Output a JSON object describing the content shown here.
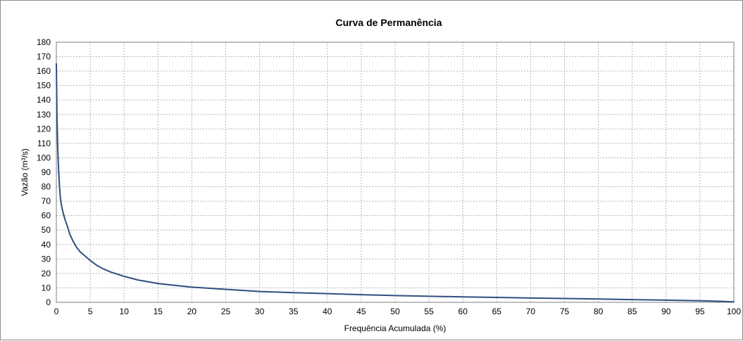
{
  "chart_data": {
    "type": "line",
    "title": "Curva de Permanência",
    "xlabel": "Frequência Acumulada  (%)",
    "ylabel": "Vazão (m³/s)",
    "xlim": [
      0,
      100
    ],
    "ylim": [
      0,
      180
    ],
    "xticks": [
      0,
      5,
      10,
      15,
      20,
      25,
      30,
      35,
      40,
      45,
      50,
      55,
      60,
      65,
      70,
      75,
      80,
      85,
      90,
      95,
      100
    ],
    "yticks": [
      0,
      10,
      20,
      30,
      40,
      50,
      60,
      70,
      80,
      90,
      100,
      110,
      120,
      130,
      140,
      150,
      160,
      170,
      180
    ],
    "grid": true,
    "legend": "none",
    "series": [
      {
        "color": "#2f4f7f",
        "x": [
          0,
          0.1,
          0.2,
          0.3,
          0.4,
          0.5,
          0.6,
          0.8,
          1.0,
          1.3,
          1.6,
          2.0,
          2.5,
          3.0,
          3.5,
          4.0,
          5.0,
          6.0,
          7.0,
          8.0,
          9.0,
          10,
          12,
          15,
          20,
          25,
          30,
          35,
          40,
          45,
          50,
          55,
          60,
          65,
          70,
          75,
          80,
          85,
          90,
          95,
          98,
          100
        ],
        "y": [
          165,
          128,
          108,
          95,
          86,
          78,
          72,
          66,
          62,
          57,
          53,
          47,
          42,
          38,
          35,
          33,
          29,
          25.5,
          23,
          21,
          19.5,
          18,
          15.5,
          13,
          10.5,
          9,
          7.5,
          6.7,
          6.0,
          5.3,
          4.7,
          4.2,
          3.8,
          3.4,
          3.0,
          2.7,
          2.3,
          1.9,
          1.5,
          1.1,
          0.7,
          0.3
        ]
      }
    ]
  }
}
